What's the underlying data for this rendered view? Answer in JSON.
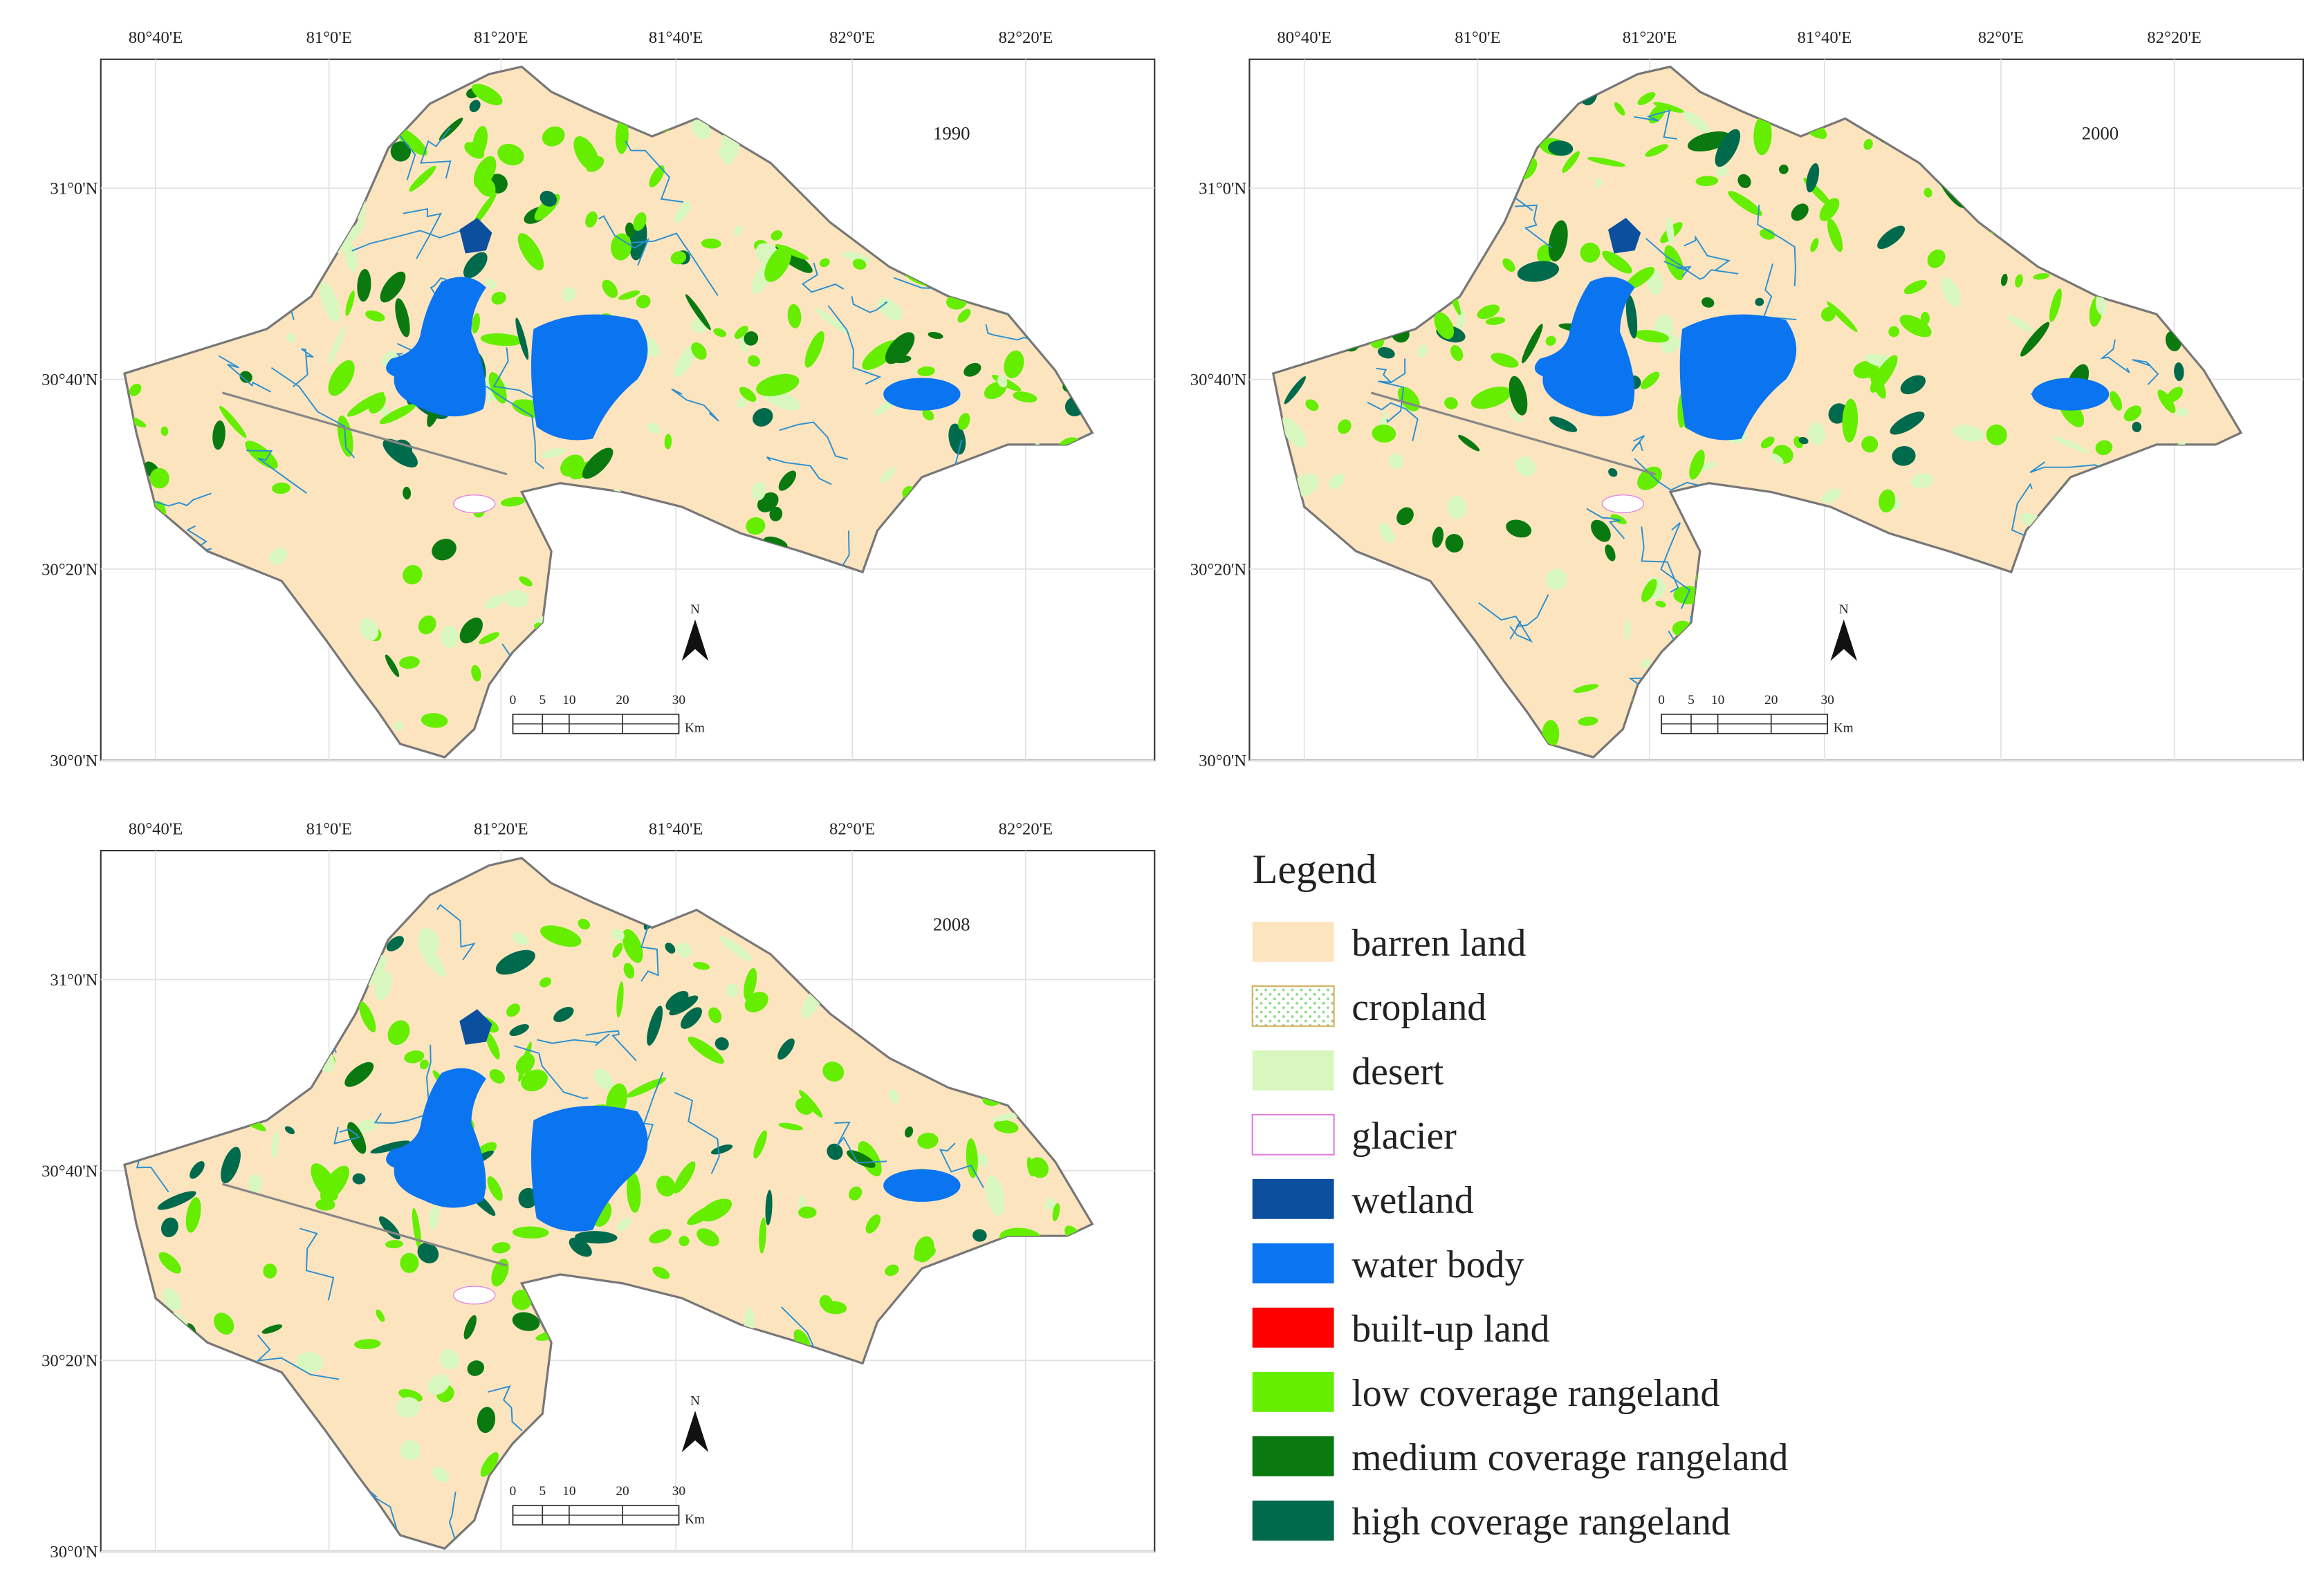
{
  "maps": [
    {
      "year": "1990",
      "lon_ticks": [
        "80°40'E",
        "81°0'E",
        "81°20'E",
        "81°40'E",
        "82°0'E",
        "82°20'E"
      ],
      "lat_ticks": [
        "31°0'N",
        "30°40'N",
        "30°20'N",
        "30°0'N"
      ],
      "scale_labels": [
        "0",
        "5",
        "10",
        "20",
        "30"
      ],
      "scale_unit": "Km",
      "north": "N"
    },
    {
      "year": "2000",
      "lon_ticks": [
        "80°40'E",
        "81°0'E",
        "81°20'E",
        "81°40'E",
        "82°0'E",
        "82°20'E"
      ],
      "lat_ticks": [
        "31°0'N",
        "30°40'N",
        "30°20'N",
        "30°0'N"
      ],
      "scale_labels": [
        "0",
        "5",
        "10",
        "20",
        "30"
      ],
      "scale_unit": "Km",
      "north": "N"
    },
    {
      "year": "2008",
      "lon_ticks": [
        "80°40'E",
        "81°0'E",
        "81°20'E",
        "81°40'E",
        "82°0'E",
        "82°20'E"
      ],
      "lat_ticks": [
        "31°0'N",
        "30°40'N",
        "30°20'N",
        "30°0'N"
      ],
      "scale_labels": [
        "0",
        "5",
        "10",
        "20",
        "30"
      ],
      "scale_unit": "Km",
      "north": "N"
    }
  ],
  "legend": {
    "title": "Legend",
    "items": [
      {
        "label": "barren land",
        "color": "#fce4bf"
      },
      {
        "label": "cropland",
        "color": "#8fd88a"
      },
      {
        "label": "desert",
        "color": "#d8f7bf"
      },
      {
        "label": "glacier",
        "color": "#ffffff"
      },
      {
        "label": "wetland",
        "color": "#0b4f9e"
      },
      {
        "label": "water body",
        "color": "#0b74f0"
      },
      {
        "label": "built-up land",
        "color": "#ff0000"
      },
      {
        "label": "low coverage rangeland",
        "color": "#66ee00"
      },
      {
        "label": "medium coverage rangeland",
        "color": "#0a7a10"
      },
      {
        "label": "high coverage rangeland",
        "color": "#006b4c"
      }
    ]
  }
}
